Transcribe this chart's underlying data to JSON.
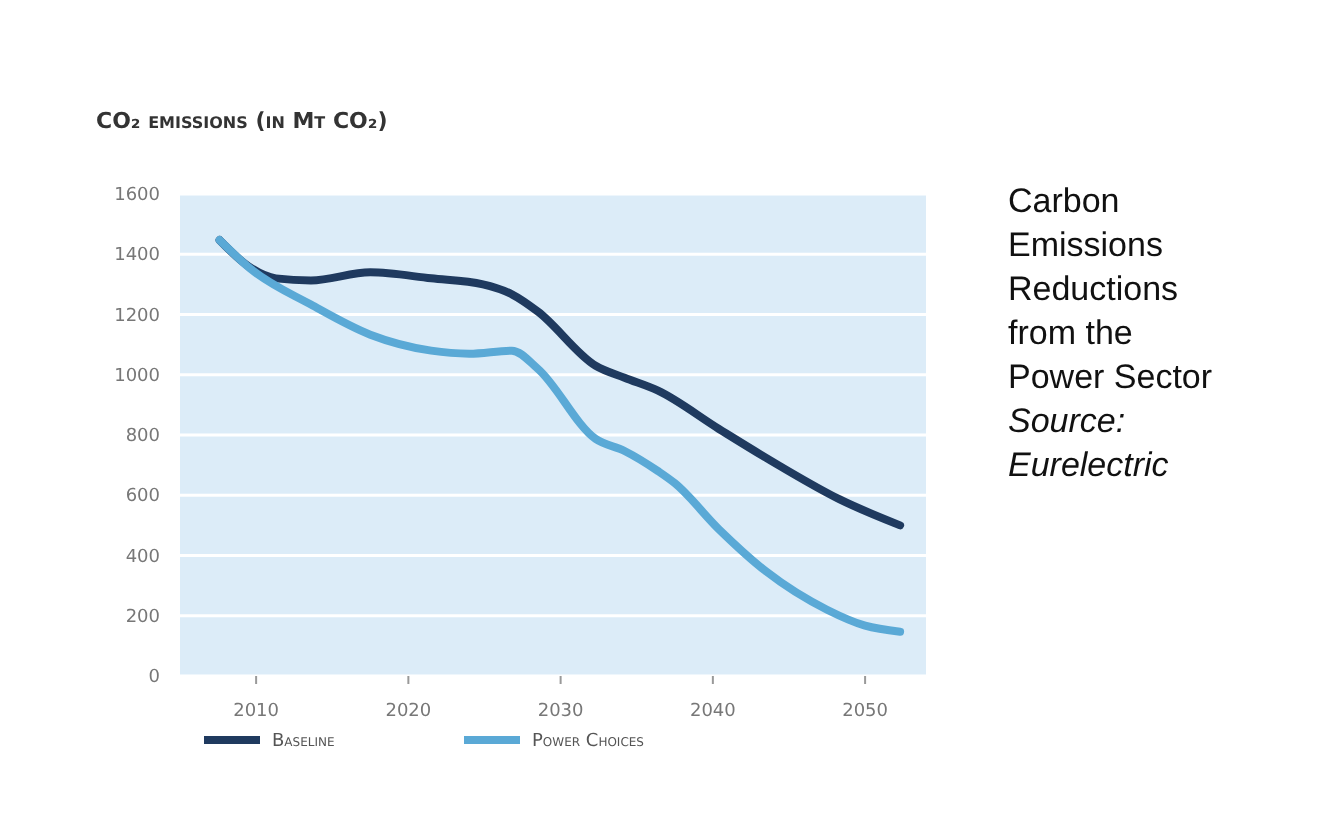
{
  "chart_data": {
    "type": "line",
    "title": "CO₂ emissions (in Mt CO₂)",
    "annotations": [
      "Carbon Emissions Reductions from the Power Sector",
      "Source: Eurelectric"
    ],
    "xlim": [
      2005,
      2054
    ],
    "xticks": [
      2010,
      2020,
      2030,
      2040,
      2050
    ],
    "ylim": [
      0,
      1600
    ],
    "yticks": [
      0,
      200,
      400,
      600,
      800,
      1000,
      1200,
      1400,
      1600
    ],
    "grid": "y",
    "legend": "bottom",
    "line_style": "solid",
    "marker": "none",
    "series": [
      {
        "name": "Baseline",
        "color": "#1f3a5f",
        "x": [
          2007.6,
          2009.5,
          2011.3,
          2013.6,
          2017.5,
          2021.5,
          2024.9,
          2026.8,
          2028.5,
          2032.3,
          2034.2,
          2036.4,
          2040.4,
          2044.3,
          2048.3,
          2052.3
        ],
        "values": [
          1447,
          1360,
          1320,
          1313,
          1340,
          1320,
          1300,
          1267,
          1210,
          1030,
          990,
          947,
          820,
          700,
          587,
          500
        ]
      },
      {
        "name": "Power Choices",
        "color": "#5aa9d6",
        "x": [
          2007.6,
          2009.6,
          2013.6,
          2017.5,
          2021.5,
          2024,
          2026.8,
          2028.5,
          2032.3,
          2034.2,
          2036.4,
          2037.5,
          2040.4,
          2043.5,
          2047.5,
          2050,
          2052.3
        ],
        "values": [
          1447,
          1353,
          1233,
          1133,
          1080,
          1070,
          1080,
          1020,
          787,
          747,
          680,
          640,
          487,
          347,
          220,
          167,
          147
        ]
      }
    ]
  }
}
